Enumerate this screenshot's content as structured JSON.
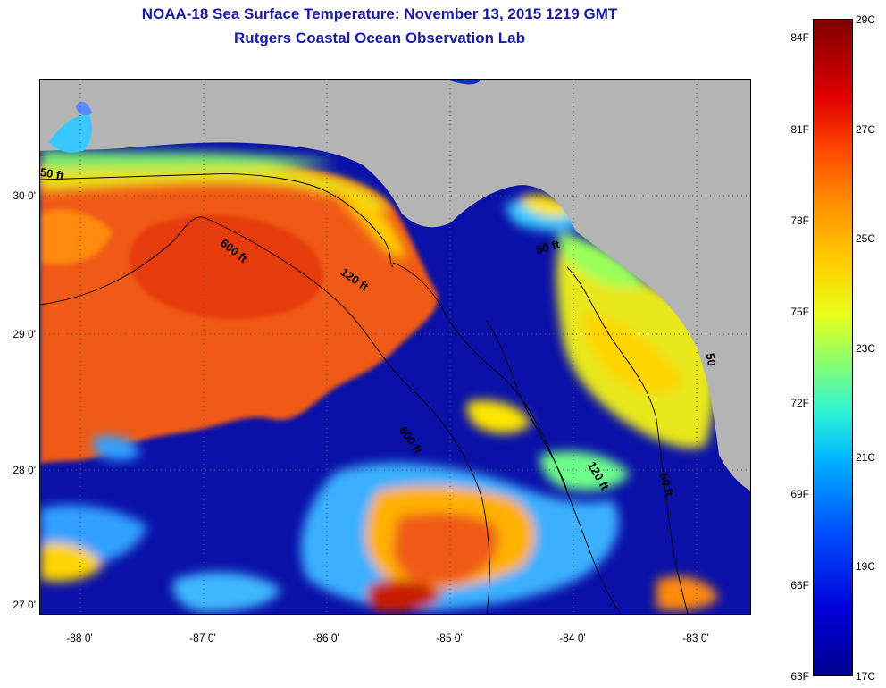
{
  "title": {
    "line1": "NOAA-18 Sea Surface Temperature:  November 13, 2015 1219 GMT",
    "line2": "Rutgers Coastal Ocean Observation Lab"
  },
  "axes": {
    "lat_labels": [
      "30 0'",
      "29 0'",
      "28 0'",
      "27 0'"
    ],
    "lon_labels": [
      "-88 0'",
      "-87 0'",
      "-86 0'",
      "-85 0'",
      "-84 0'",
      "-83 0'"
    ]
  },
  "contours": {
    "labels": [
      "50 ft",
      "600 ft",
      "120 ft",
      "50 ft",
      "600 ft",
      "120 ft",
      "50 ft",
      "50"
    ]
  },
  "colorbar": {
    "fahrenheit": [
      "84F",
      "81F",
      "78F",
      "75F",
      "72F",
      "69F",
      "66F",
      "63F"
    ],
    "celsius": [
      "29C",
      "27C",
      "25C",
      "23C",
      "21C",
      "19C",
      "17C"
    ]
  },
  "colors": {
    "land": "#b4b4b4",
    "cold": "#0a10a8",
    "warm": "#f05a12",
    "title": "#1a1aa6"
  }
}
